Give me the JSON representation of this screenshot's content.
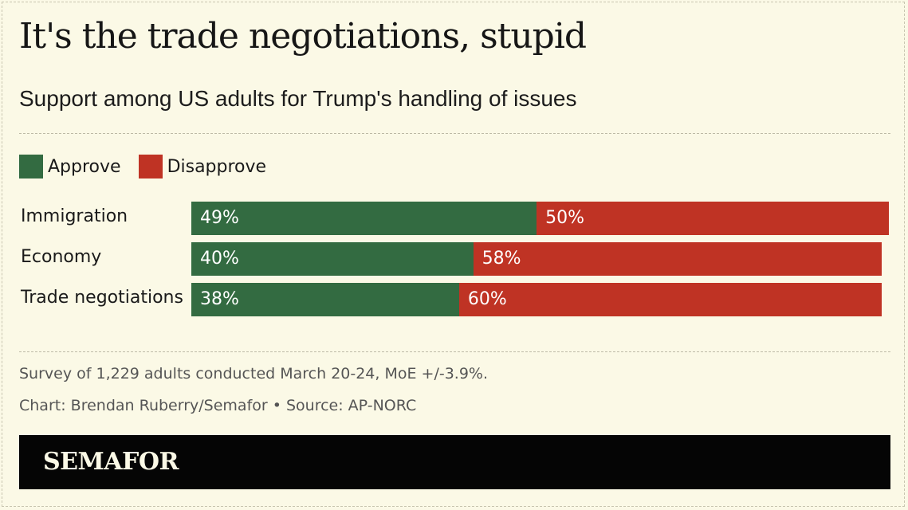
{
  "chart_data": {
    "type": "bar",
    "orientation": "horizontal",
    "stacked": true,
    "title": "It's the trade negotiations, stupid",
    "subtitle": "Support among US adults for Trump's handling of issues",
    "categories": [
      "Immigration",
      "Economy",
      "Trade negotiations"
    ],
    "series": [
      {
        "name": "Approve",
        "values": [
          49,
          40,
          38
        ],
        "labels": [
          "49%",
          "40%",
          "38%"
        ],
        "color": "#336b41"
      },
      {
        "name": "Disapprove",
        "values": [
          50,
          58,
          60
        ],
        "labels": [
          "50%",
          "58%",
          "60%"
        ],
        "color": "#bf3324"
      }
    ],
    "xlim": [
      0,
      100
    ],
    "legend_position": "top-left",
    "grid": false,
    "notes": "Survey of 1,229 adults conducted March 20-24, MoE +/-3.9%.",
    "credit": "Chart: Brendan Ruberry/Semafor • Source: AP-NORC"
  },
  "footer": {
    "logo": "SEMAFOR"
  }
}
